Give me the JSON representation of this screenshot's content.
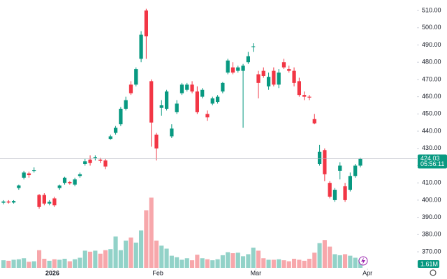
{
  "chart_data": {
    "type": "candlestick",
    "open": [
      398.5,
      399.2,
      398.6,
      407,
      413,
      415.5,
      417,
      403,
      403,
      398,
      401,
      407,
      410,
      410.5,
      409,
      414,
      421,
      423.5,
      424.5,
      423.5,
      423,
      435.5,
      439,
      444,
      453,
      467,
      467,
      482,
      510,
      469,
      438,
      453.5,
      453,
      437,
      451,
      462,
      464,
      467,
      463,
      460,
      450,
      456,
      457,
      463,
      474,
      477,
      475,
      475,
      480,
      489,
      473,
      475,
      466,
      475,
      467,
      480,
      476,
      475,
      469,
      461,
      460,
      447,
      421,
      429,
      410,
      400,
      417,
      408,
      406,
      414,
      420
    ],
    "high": [
      400,
      400,
      400,
      409,
      417,
      416.5,
      419,
      403.5,
      404,
      400,
      402,
      409,
      413.5,
      411,
      413,
      416,
      424,
      426,
      426,
      424.5,
      424,
      438,
      443,
      454,
      460,
      469,
      477,
      498,
      511,
      470,
      439,
      458,
      464,
      444,
      458,
      468,
      468,
      469,
      466,
      465,
      452,
      460,
      461,
      468.5,
      482,
      480,
      478,
      479,
      486,
      491,
      475,
      477,
      474,
      477,
      476,
      482,
      478,
      477,
      471,
      463,
      461,
      450,
      432,
      430,
      411,
      407,
      422,
      410,
      416,
      421,
      424.5
    ],
    "low": [
      397.5,
      398,
      398,
      406,
      412,
      413,
      416,
      395,
      397,
      397,
      396,
      406,
      409,
      409,
      408,
      413,
      420,
      420,
      423,
      421.5,
      418,
      435,
      438,
      443,
      452,
      461,
      466,
      480,
      482,
      431,
      423,
      449,
      452,
      436,
      450,
      461,
      463,
      462,
      450,
      459,
      446,
      455,
      456,
      462,
      473,
      473,
      474,
      442,
      479,
      486,
      459,
      471,
      464,
      466,
      465,
      476,
      474,
      466,
      460,
      458,
      458,
      444,
      420,
      411,
      401,
      399,
      412,
      399,
      405,
      413,
      419
    ],
    "close": [
      399.2,
      398.6,
      399.5,
      408.5,
      416,
      414.5,
      417.3,
      396,
      398,
      399,
      397,
      408.5,
      413,
      409.8,
      412,
      415,
      422.5,
      421.5,
      425,
      422.8,
      419.5,
      437,
      442,
      453,
      458,
      462,
      476,
      496,
      495,
      445,
      430,
      455,
      463,
      441.5,
      456,
      467,
      467,
      463,
      451,
      464,
      448,
      459,
      460,
      468,
      481,
      474,
      477,
      478,
      483.5,
      489.2,
      468,
      472,
      471.5,
      467,
      474,
      477,
      475,
      468,
      461,
      460,
      459.5,
      444.5,
      428,
      415,
      402,
      406,
      420,
      400,
      414,
      420,
      424.03
    ],
    "volume": [
      1.5,
      1.4,
      1.6,
      1.7,
      1.9,
      1.2,
      1.3,
      3.5,
      1.8,
      1.4,
      1.7,
      1.6,
      1.8,
      1.3,
      1.7,
      2.0,
      3.4,
      3.2,
      3.4,
      2.8,
      3.5,
      3.7,
      6.2,
      3.5,
      5.4,
      6.0,
      5.0,
      7.4,
      11.4,
      13.9,
      5.4,
      4.4,
      3.8,
      2.4,
      2.1,
      1.6,
      1.9,
      1.5,
      2.6,
      1.9,
      1.7,
      1.5,
      1.7,
      2.5,
      3.1,
      2.9,
      3.0,
      2.3,
      2.7,
      4.0,
      3.4,
      1.9,
      1.6,
      1.6,
      1.7,
      1.5,
      1.3,
      1.8,
      1.6,
      1.4,
      1.8,
      3.0,
      4.9,
      5.5,
      4.2,
      2.7,
      2.5,
      2.7,
      2.4,
      2.0,
      1.61
    ],
    "up_color": "#089981",
    "down_color": "#f23645",
    "volume_up_color": "#92d2c8",
    "volume_down_color": "#f7a7ab",
    "xlim": [
      -0.68,
      81.1
    ],
    "xticks": [
      {
        "value": 9.6,
        "label": "2026"
      },
      {
        "value": 30.3,
        "label": "Feb"
      },
      {
        "value": 49.5,
        "label": "Mar"
      },
      {
        "value": 71.4,
        "label": "Apr"
      }
    ],
    "ylim": [
      360.3,
      516.1
    ],
    "yticks": [
      {
        "value": 370,
        "label": "370.00"
      },
      {
        "value": 380,
        "label": "380.00"
      },
      {
        "value": 390,
        "label": "390.00"
      },
      {
        "value": 400,
        "label": "400.00"
      },
      {
        "value": 410,
        "label": "410.00"
      },
      {
        "value": 420,
        "label": "420.00"
      },
      {
        "value": 430,
        "label": "430.00"
      },
      {
        "value": 440,
        "label": "440.00"
      },
      {
        "value": 450,
        "label": "450.00"
      },
      {
        "value": 460,
        "label": "460.00"
      },
      {
        "value": 470,
        "label": "470.00"
      },
      {
        "value": 480,
        "label": "480.00"
      },
      {
        "value": 490,
        "label": "490.00"
      },
      {
        "value": 500,
        "label": "500.00"
      },
      {
        "value": 510,
        "label": "510.00"
      }
    ],
    "volume_ylim": [
      0,
      14.5
    ],
    "last_price": 424.03,
    "countdown": "05:56:11",
    "last_volume_label": "1.61M",
    "grid": false
  }
}
